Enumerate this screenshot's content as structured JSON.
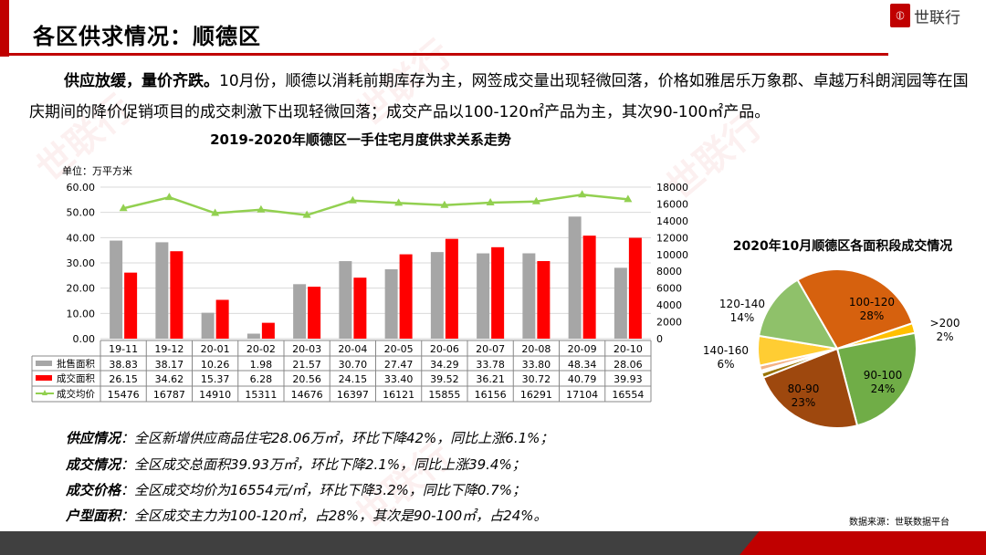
{
  "header": {
    "title": "各区供求情况：顺德区",
    "logo_text": "世联行",
    "logo_mark": "(|||)"
  },
  "intro": {
    "bold": "供应放缓，量价齐跌。",
    "text": "10月份，顺德以消耗前期库存为主，网签成交量出现轻微回落，价格如雅居乐万象郡、卓越万科朗润园等在国庆期间的降价促销项目的成交刺激下出现轻微回落；成交产品以100-120㎡产品为主，其次90-100㎡产品。"
  },
  "colors": {
    "brand": "#c00000",
    "bar_supply": "#a6a6a6",
    "bar_deal": "#ff0000",
    "line_price": "#92d050"
  },
  "chart_data": [
    {
      "type": "bar",
      "title": "2019-2020年顺德区一手住宅月度供求关系走势",
      "ylabel": "单位：万平方米",
      "ylim": [
        0,
        60
      ],
      "y2lim": [
        0,
        18000
      ],
      "yticks": [
        "0.00",
        "10.00",
        "20.00",
        "30.00",
        "40.00",
        "50.00",
        "60.00"
      ],
      "y2ticks": [
        "0",
        "2000",
        "4000",
        "6000",
        "8000",
        "10000",
        "12000",
        "14000",
        "16000",
        "18000"
      ],
      "grid": true,
      "legend": "data-table",
      "categories": [
        "19-11",
        "19-12",
        "20-01",
        "20-02",
        "20-03",
        "20-04",
        "20-05",
        "20-06",
        "20-07",
        "20-08",
        "20-09",
        "20-10"
      ],
      "series": [
        {
          "name": "批售面积",
          "type": "bar",
          "axis": "left",
          "values": [
            "38.83",
            "38.17",
            "10.26",
            "1.98",
            "21.57",
            "30.70",
            "27.47",
            "34.29",
            "33.78",
            "33.80",
            "48.34",
            "28.06"
          ]
        },
        {
          "name": "成交面积",
          "type": "bar",
          "axis": "left",
          "values": [
            "26.15",
            "34.62",
            "15.37",
            "6.28",
            "20.56",
            "24.15",
            "33.40",
            "39.52",
            "36.21",
            "30.72",
            "40.79",
            "39.93"
          ]
        },
        {
          "name": "成交均价",
          "type": "line",
          "axis": "right",
          "values": [
            "15476",
            "16787",
            "14910",
            "15311",
            "14676",
            "16397",
            "16121",
            "15855",
            "16156",
            "16291",
            "17104",
            "16554"
          ]
        }
      ]
    },
    {
      "type": "pie",
      "title": "2020年10月顺德区各面积段成交情况",
      "slices": [
        {
          "label": "100-120",
          "pct": "28%",
          "value": 28,
          "color": "#d6610e"
        },
        {
          "label": ">200",
          "pct": "2%",
          "value": 2,
          "color": "#ffc000"
        },
        {
          "label": "90-100",
          "pct": "24%",
          "value": 24,
          "color": "#70ad47"
        },
        {
          "label": "80-90",
          "pct": "23%",
          "value": 23,
          "color": "#9e480e"
        },
        {
          "label": "",
          "pct": "",
          "value": 1,
          "color": "#997300"
        },
        {
          "label": "",
          "pct": "",
          "value": 0.5,
          "color": "#ffffff"
        },
        {
          "label": "",
          "pct": "",
          "value": 1,
          "color": "#f4b183"
        },
        {
          "label": "140-160",
          "pct": "6%",
          "value": 6,
          "color": "#ffcd33"
        },
        {
          "label": "120-140",
          "pct": "14%",
          "value": 14,
          "color": "#8fc16a"
        }
      ]
    }
  ],
  "stats": [
    {
      "label": "供应情况",
      "text": "：全区新增供应商品住宅28.06万㎡，环比下降42%，同比上涨6.1%；"
    },
    {
      "label": "成交情况",
      "text": "：全区成交总面积39.93万㎡，环比下降2.1%，同比上涨39.4%；"
    },
    {
      "label": "成交价格",
      "text": "：全区成交均价为16554元/㎡，环比下降3.2%，同比下降0.7%；"
    },
    {
      "label": "户型面积",
      "text": "：全区成交主力为100-120㎡，占28%，其次是90-100㎡，占24%。"
    }
  ],
  "source": "数据来源：世联数据平台"
}
